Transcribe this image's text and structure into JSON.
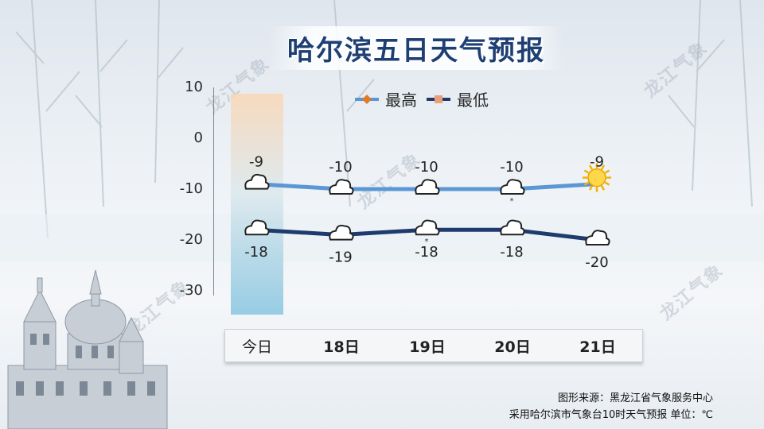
{
  "title": "哈尔滨五日天气预报",
  "watermark": "龙江气象",
  "legend": {
    "high_label": "最高",
    "low_label": "最低"
  },
  "footer": {
    "line1": "图形来源：黑龙江省气象服务中心",
    "line2": "采用哈尔滨市气象台10时天气预报 单位：℃"
  },
  "colors": {
    "high": "#5b97d5",
    "low": "#1f3b6e",
    "title": "#1d3f73"
  },
  "chart_data": {
    "type": "line",
    "categories": [
      "今日",
      "18日",
      "19日",
      "20日",
      "21日"
    ],
    "series": [
      {
        "name": "最高",
        "values": [
          -9,
          -10,
          -10,
          -10,
          -9
        ]
      },
      {
        "name": "最低",
        "values": [
          -18,
          -19,
          -18,
          -18,
          -20
        ]
      }
    ],
    "ylim": [
      -30,
      10
    ],
    "yticks": [
      10,
      0,
      -10,
      -20,
      -30
    ],
    "high_icons": [
      "cloudy",
      "cloudy",
      "cloudy",
      "cloudy-light-snow",
      "sunny"
    ],
    "low_icons": [
      "cloudy",
      "cloudy",
      "cloudy-light-snow",
      "cloudy",
      "cloudy"
    ],
    "high_labels": [
      "-9",
      "-10",
      "-10",
      "-10",
      "-9"
    ],
    "low_labels": [
      "-18",
      "-19",
      "-18",
      "-18",
      "-20"
    ],
    "legend_position": "top"
  }
}
